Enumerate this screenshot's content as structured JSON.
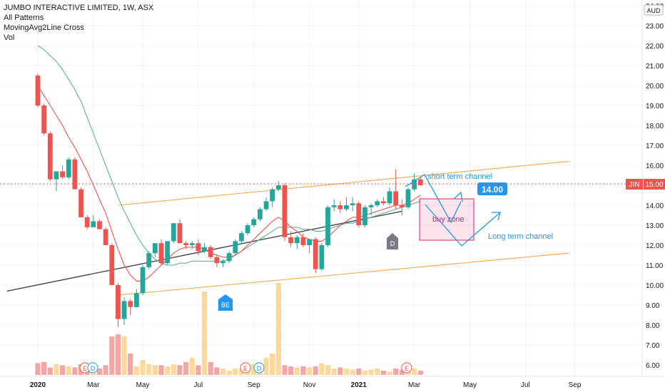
{
  "legend": {
    "title": "JUMBO INTERACTIVE LIMITED, 1W, ASX",
    "line2": "All Patterns",
    "line3": "MovingAvg2Line Cross",
    "line4": "Vol"
  },
  "currency": "AUD",
  "ticker_label": "JIN",
  "last_price_label": "15.00",
  "colors": {
    "up": "#26a69a",
    "down": "#ef5350",
    "vol_up": "#fcd89a",
    "vol_down": "#f6a5a5",
    "ma_fast": "#ef5350",
    "ma_slow": "#5fb38f",
    "channel": "#f9a749",
    "trend": "#434651",
    "annotation": "#2196f3",
    "zone": "#e91e63"
  },
  "annotations": {
    "short_channel": "short term channel",
    "target": "14.00",
    "buy_zone": "buy zone",
    "long_channel": "Long term channel",
    "badge_be": "BE",
    "badge_d": "D",
    "event_e": "E",
    "event_d": "D"
  },
  "chart_data": {
    "type": "candlestick",
    "symbol": "JIN",
    "interval": "1W",
    "y_ticks": [
      6,
      7,
      8,
      9,
      10,
      11,
      12,
      13,
      14,
      15,
      16,
      17,
      18,
      19,
      20,
      21,
      22,
      23,
      24
    ],
    "y_tick_labels": [
      "6.00",
      "7.00",
      "8.00",
      "9.00",
      "10.00",
      "11.00",
      "12.00",
      "13.00",
      "14.00",
      "15.00",
      "16.00",
      "17.00",
      "18.00",
      "19.00",
      "20.00",
      "21.00",
      "22.00",
      "23.00",
      "24.00"
    ],
    "ylim": [
      5.6,
      24.1
    ],
    "x_tick_labels": [
      "2020",
      "Mar",
      "May",
      "Jul",
      "Sep",
      "Nov",
      "2021",
      "Mar",
      "May",
      "Jul",
      "Sep"
    ],
    "x_tick_weeks": [
      0,
      9,
      17,
      26,
      35,
      44,
      52,
      61,
      70,
      79,
      87
    ],
    "ohlc": [
      [
        20.5,
        20.6,
        18.9,
        19.0
      ],
      [
        19.0,
        19.1,
        17.5,
        17.6
      ],
      [
        17.6,
        17.7,
        15.2,
        15.3
      ],
      [
        15.3,
        15.6,
        14.7,
        15.7
      ],
      [
        15.7,
        16.0,
        15.3,
        15.4
      ],
      [
        15.4,
        16.4,
        15.3,
        16.3
      ],
      [
        16.3,
        16.4,
        14.8,
        14.8
      ],
      [
        14.8,
        14.9,
        13.4,
        13.4
      ],
      [
        13.4,
        13.5,
        12.8,
        12.9
      ],
      [
        12.9,
        13.5,
        12.9,
        13.2
      ],
      [
        13.2,
        13.3,
        12.8,
        12.8
      ],
      [
        12.8,
        12.9,
        12.0,
        12.0
      ],
      [
        12.0,
        12.1,
        10.0,
        10.0
      ],
      [
        10.0,
        10.1,
        7.9,
        8.3
      ],
      [
        8.3,
        9.4,
        8.0,
        9.2
      ],
      [
        9.2,
        9.3,
        8.5,
        8.9
      ],
      [
        8.9,
        9.8,
        8.9,
        9.6
      ],
      [
        9.6,
        11.0,
        9.5,
        10.9
      ],
      [
        10.9,
        11.7,
        10.8,
        11.6
      ],
      [
        11.6,
        12.1,
        11.4,
        12.1
      ],
      [
        12.1,
        12.3,
        11.0,
        11.1
      ],
      [
        11.1,
        12.2,
        11.0,
        12.2
      ],
      [
        12.2,
        13.1,
        12.1,
        13.1
      ],
      [
        13.1,
        13.3,
        12.1,
        12.1
      ],
      [
        12.1,
        12.2,
        11.8,
        12.0
      ],
      [
        12.0,
        12.2,
        11.8,
        12.1
      ],
      [
        12.1,
        12.3,
        11.5,
        11.7
      ],
      [
        11.7,
        12.1,
        11.6,
        11.9
      ],
      [
        11.9,
        12.0,
        11.3,
        11.4
      ],
      [
        11.4,
        11.5,
        10.9,
        11.1
      ],
      [
        11.1,
        11.3,
        10.9,
        11.2
      ],
      [
        11.2,
        11.7,
        11.1,
        11.6
      ],
      [
        11.6,
        12.3,
        11.5,
        12.2
      ],
      [
        12.2,
        12.7,
        12.1,
        12.6
      ],
      [
        12.6,
        13.1,
        12.5,
        13.0
      ],
      [
        13.0,
        13.4,
        12.9,
        13.3
      ],
      [
        13.3,
        13.9,
        13.2,
        13.8
      ],
      [
        13.8,
        14.4,
        13.7,
        14.2
      ],
      [
        14.2,
        14.9,
        13.9,
        14.8
      ],
      [
        14.8,
        15.2,
        14.7,
        15.0
      ],
      [
        15.0,
        15.1,
        12.2,
        12.4
      ],
      [
        12.4,
        12.7,
        11.9,
        12.1
      ],
      [
        12.1,
        12.5,
        11.8,
        12.4
      ],
      [
        12.4,
        12.6,
        11.9,
        12.0
      ],
      [
        12.0,
        12.2,
        11.6,
        12.3
      ],
      [
        12.3,
        12.4,
        10.6,
        10.8
      ],
      [
        10.8,
        12.1,
        10.7,
        12.0
      ],
      [
        12.0,
        14.0,
        11.9,
        13.9
      ],
      [
        13.9,
        14.3,
        13.7,
        14.0
      ],
      [
        14.0,
        14.2,
        13.6,
        13.8
      ],
      [
        13.8,
        14.4,
        13.7,
        14.0
      ],
      [
        14.0,
        14.4,
        13.7,
        14.1
      ],
      [
        14.1,
        14.2,
        12.9,
        13.0
      ],
      [
        13.0,
        14.0,
        12.9,
        13.9
      ],
      [
        13.9,
        14.1,
        13.5,
        14.0
      ],
      [
        14.0,
        14.3,
        13.9,
        14.2
      ],
      [
        14.2,
        14.4,
        14.0,
        14.1
      ],
      [
        14.1,
        14.9,
        14.0,
        14.7
      ],
      [
        14.7,
        15.8,
        13.8,
        14.0
      ],
      [
        14.0,
        14.3,
        13.5,
        13.9
      ],
      [
        13.9,
        14.9,
        13.8,
        14.8
      ],
      [
        14.8,
        15.6,
        14.7,
        15.3
      ],
      [
        15.3,
        15.4,
        15.0,
        15.0
      ]
    ],
    "volume_relative": [
      0.55,
      0.6,
      0.35,
      0.5,
      0.45,
      0.4,
      0.35,
      0.5,
      0.35,
      0.4,
      0.3,
      0.45,
      1.8,
      1.9,
      1.8,
      1.0,
      0.4,
      0.7,
      0.5,
      0.45,
      0.45,
      0.4,
      0.5,
      0.45,
      0.6,
      0.8,
      0.45,
      3.9,
      0.6,
      0.35,
      0.3,
      0.2,
      0.3,
      0.3,
      0.4,
      0.5,
      0.35,
      0.8,
      1.0,
      4.3,
      0.45,
      0.4,
      0.35,
      0.4,
      0.35,
      0.4,
      0.55,
      0.45,
      0.3,
      0.35,
      0.3,
      0.25,
      0.3,
      0.2,
      0.25,
      0.3,
      0.2,
      0.15,
      0.3,
      0.25,
      0.3,
      0.3,
      0.2
    ],
    "series": [
      {
        "values": [
          22.0,
          21.8,
          21.5,
          21.2,
          20.8,
          20.3,
          19.8,
          19.2,
          18.4,
          17.6,
          16.8,
          16.0,
          15.2,
          14.4,
          13.7,
          13.1,
          12.5,
          12.0,
          11.6,
          11.3,
          11.1,
          11.0,
          11.0,
          11.1,
          11.1,
          11.2,
          11.2,
          11.2,
          11.2,
          11.2,
          11.2,
          11.3,
          11.5,
          11.7,
          11.9,
          12.1,
          12.3,
          12.5,
          12.7,
          12.9,
          12.9,
          12.9,
          12.9,
          12.8,
          12.8,
          12.7,
          12.7,
          12.8,
          12.9,
          13.0,
          13.1,
          13.1,
          13.2,
          13.3,
          13.4,
          13.5,
          13.6,
          13.7,
          13.8,
          13.9,
          14.0,
          14.1,
          14.2
        ]
      },
      {
        "values": [
          20.0,
          19.5,
          19.0,
          18.5,
          18.0,
          17.4,
          16.9,
          16.3,
          15.7,
          15.0,
          14.3,
          13.6,
          12.7,
          11.8,
          11.0,
          10.5,
          10.2,
          10.2,
          10.4,
          10.7,
          11.0,
          11.3,
          11.6,
          11.8,
          11.9,
          11.9,
          11.9,
          11.8,
          11.6,
          11.5,
          11.4,
          11.4,
          11.5,
          11.7,
          12.0,
          12.3,
          12.6,
          12.9,
          13.2,
          13.4,
          13.2,
          12.9,
          12.7,
          12.4,
          12.3,
          12.2,
          12.2,
          12.4,
          12.7,
          13.0,
          13.2,
          13.4,
          13.4,
          13.5,
          13.6,
          13.7,
          13.8,
          13.9,
          14.0,
          14.0,
          14.1,
          14.3,
          14.5
        ]
      }
    ],
    "trend_line": [
      [
        -5,
        9.7
      ],
      [
        59,
        13.7
      ]
    ],
    "upper_channel": [
      [
        13,
        14.0
      ],
      [
        86,
        16.2
      ]
    ],
    "lower_channel": [
      [
        13,
        9.5
      ],
      [
        86,
        11.6
      ]
    ]
  }
}
